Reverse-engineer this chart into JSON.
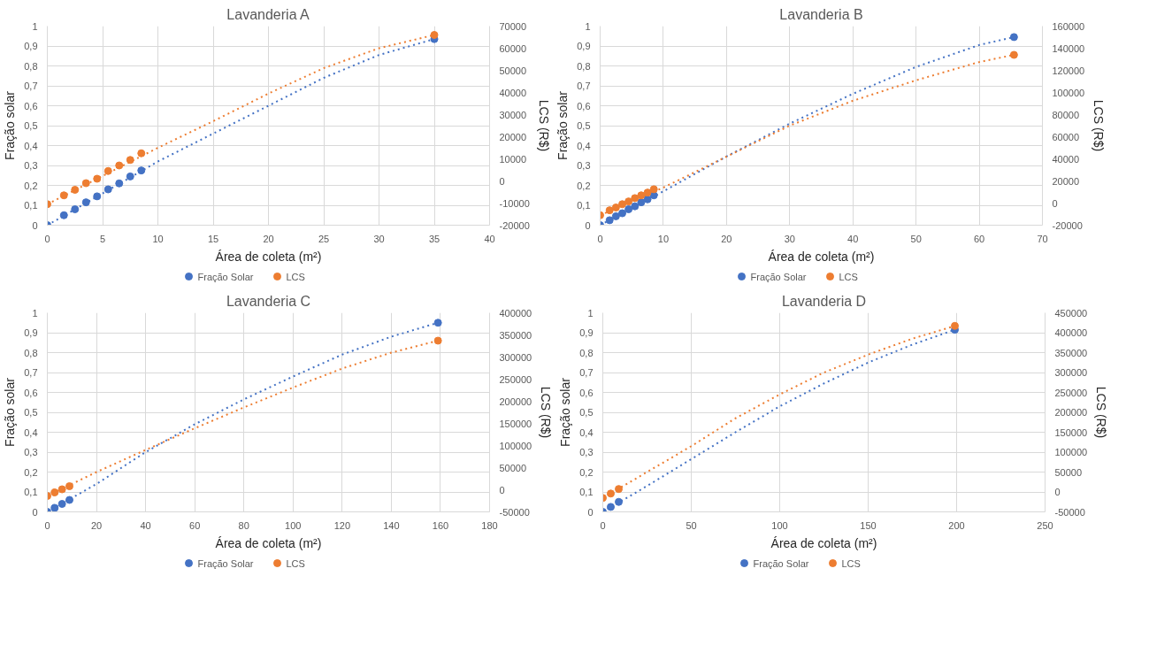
{
  "chart_data": [
    {
      "type": "scatter",
      "title": "Lavanderia A",
      "xlabel": "Área de coleta (m²)",
      "ylabel": "Fração solar",
      "y2label": "LCS (R$)",
      "xlim": [
        0,
        40
      ],
      "xticks": [
        0,
        5,
        10,
        15,
        20,
        25,
        30,
        35,
        40
      ],
      "ylim": [
        0,
        1
      ],
      "yticks": [
        0,
        {
          "value": 0.1,
          "label": "0,1"
        },
        {
          "value": 0.2,
          "label": "0,2"
        },
        {
          "value": 0.3,
          "label": "0,3"
        },
        {
          "value": 0.4,
          "label": "0,4"
        },
        {
          "value": 0.5,
          "label": "0,5"
        },
        {
          "value": 0.6,
          "label": "0,6"
        },
        {
          "value": 0.7,
          "label": "0,7"
        },
        {
          "value": 0.8,
          "label": "0,8"
        },
        {
          "value": 0.9,
          "label": "0,9"
        },
        1
      ],
      "y2lim": [
        -20000,
        70000
      ],
      "y2ticks": [
        -20000,
        -10000,
        0,
        10000,
        20000,
        30000,
        40000,
        50000,
        60000,
        70000
      ],
      "grid": true,
      "legend": "bottom",
      "marker": "circle",
      "series": [
        {
          "name": "Fração Solar",
          "color": "#4472c4",
          "x": [
            0,
            1.5,
            2.5,
            3.5,
            4.5,
            5.5,
            6.5,
            7.5,
            8.5,
            35
          ],
          "values": [
            0,
            0.05,
            0.08,
            0.115,
            0.145,
            0.18,
            0.21,
            0.245,
            0.275,
            0.935
          ]
        },
        {
          "name": "LCS",
          "color": "#ed7d31",
          "axis": "y2",
          "x": [
            0,
            1.5,
            2.5,
            3.5,
            4.5,
            5.5,
            6.5,
            7.5,
            8.5,
            35
          ],
          "values": [
            -10500,
            -6500,
            -4000,
            -1000,
            1000,
            4500,
            7000,
            9500,
            12500,
            66000
          ]
        },
        {
          "type": "line",
          "line_style": "dotted",
          "marker": "none",
          "color": "#4472c4",
          "x": [
            0,
            10,
            15,
            20,
            25,
            30,
            35
          ],
          "values": [
            0,
            0.32,
            0.46,
            0.6,
            0.74,
            0.855,
            0.935
          ]
        },
        {
          "type": "line",
          "line_style": "dotted",
          "marker": "none",
          "color": "#ed7d31",
          "axis": "y2",
          "x": [
            0,
            10,
            15,
            20,
            25,
            30,
            35
          ],
          "values": [
            -10500,
            15000,
            27000,
            39500,
            51000,
            60000,
            66000
          ]
        }
      ]
    },
    {
      "type": "scatter",
      "title": "Lavanderia B",
      "xlabel": "Área de coleta (m²)",
      "ylabel": "Fração solar",
      "y2label": "LCS (R$)",
      "xlim": [
        0,
        70
      ],
      "xticks": [
        0,
        10,
        20,
        30,
        40,
        50,
        60,
        70
      ],
      "ylim": [
        0,
        1
      ],
      "yticks": [
        0,
        {
          "value": 0.1,
          "label": "0,1"
        },
        {
          "value": 0.2,
          "label": "0,2"
        },
        {
          "value": 0.3,
          "label": "0,3"
        },
        {
          "value": 0.4,
          "label": "0,4"
        },
        {
          "value": 0.5,
          "label": "0,5"
        },
        {
          "value": 0.6,
          "label": "0,6"
        },
        {
          "value": 0.7,
          "label": "0,7"
        },
        {
          "value": 0.8,
          "label": "0,8"
        },
        {
          "value": 0.9,
          "label": "0,9"
        },
        1
      ],
      "y2lim": [
        -20000,
        160000
      ],
      "y2ticks": [
        -20000,
        0,
        20000,
        40000,
        60000,
        80000,
        100000,
        120000,
        140000,
        160000
      ],
      "grid": true,
      "legend": "bottom",
      "marker": "circle",
      "series": [
        {
          "name": "Fração Solar",
          "color": "#4472c4",
          "x": [
            0,
            1.5,
            2.5,
            3.5,
            4.5,
            5.5,
            6.5,
            7.5,
            8.5,
            65.5
          ],
          "values": [
            0,
            0.025,
            0.045,
            0.06,
            0.08,
            0.095,
            0.115,
            0.13,
            0.15,
            0.945
          ]
        },
        {
          "name": "LCS",
          "color": "#ed7d31",
          "axis": "y2",
          "x": [
            0,
            1.5,
            2.5,
            3.5,
            4.5,
            5.5,
            6.5,
            7.5,
            8.5,
            65.5
          ],
          "values": [
            -11000,
            -6500,
            -4000,
            -1000,
            1500,
            4500,
            7000,
            9500,
            12500,
            134000
          ]
        },
        {
          "type": "line",
          "line_style": "dotted",
          "marker": "none",
          "color": "#4472c4",
          "x": [
            0,
            10,
            20,
            30,
            40,
            50,
            60,
            65.5
          ],
          "values": [
            0,
            0.17,
            0.345,
            0.51,
            0.66,
            0.795,
            0.905,
            0.945
          ]
        },
        {
          "type": "line",
          "line_style": "dotted",
          "marker": "none",
          "color": "#ed7d31",
          "axis": "y2",
          "x": [
            0,
            10,
            20,
            30,
            40,
            50,
            60,
            65.5
          ],
          "values": [
            -11000,
            14000,
            42000,
            70000,
            92500,
            111000,
            127500,
            134000
          ]
        }
      ]
    },
    {
      "type": "scatter",
      "title": "Lavanderia C",
      "xlabel": "Área de coleta (m²)",
      "ylabel": "Fração solar",
      "y2label": "LCS (R$)",
      "xlim": [
        0,
        180
      ],
      "xticks": [
        0,
        20,
        40,
        60,
        80,
        100,
        120,
        140,
        160,
        180
      ],
      "ylim": [
        0,
        1
      ],
      "yticks": [
        0,
        {
          "value": 0.1,
          "label": "0,1"
        },
        {
          "value": 0.2,
          "label": "0,2"
        },
        {
          "value": 0.3,
          "label": "0,3"
        },
        {
          "value": 0.4,
          "label": "0,4"
        },
        {
          "value": 0.5,
          "label": "0,5"
        },
        {
          "value": 0.6,
          "label": "0,6"
        },
        {
          "value": 0.7,
          "label": "0,7"
        },
        {
          "value": 0.8,
          "label": "0,8"
        },
        {
          "value": 0.9,
          "label": "0,9"
        },
        1
      ],
      "y2lim": [
        -50000,
        400000
      ],
      "y2ticks": [
        -50000,
        0,
        50000,
        100000,
        150000,
        200000,
        250000,
        300000,
        350000,
        400000
      ],
      "grid": true,
      "legend": "bottom",
      "marker": "circle",
      "series": [
        {
          "name": "Fração Solar",
          "color": "#4472c4",
          "x": [
            0,
            3,
            6,
            9,
            159
          ],
          "values": [
            0,
            0.02,
            0.04,
            0.06,
            0.95
          ]
        },
        {
          "name": "LCS",
          "color": "#ed7d31",
          "axis": "y2",
          "x": [
            0,
            3,
            6,
            9,
            159
          ],
          "values": [
            -14000,
            -6000,
            1000,
            8000,
            337000
          ]
        },
        {
          "type": "line",
          "line_style": "dotted",
          "marker": "none",
          "color": "#4472c4",
          "x": [
            0,
            20,
            40,
            60,
            80,
            100,
            120,
            140,
            159
          ],
          "values": [
            0,
            0.14,
            0.3,
            0.44,
            0.565,
            0.68,
            0.79,
            0.88,
            0.95
          ]
        },
        {
          "type": "line",
          "line_style": "dotted",
          "marker": "none",
          "color": "#ed7d31",
          "axis": "y2",
          "x": [
            0,
            20,
            40,
            60,
            80,
            100,
            120,
            140,
            159
          ],
          "values": [
            -14000,
            40000,
            90000,
            139000,
            186000,
            231000,
            274000,
            310000,
            337000
          ]
        }
      ]
    },
    {
      "type": "scatter",
      "title": "Lavanderia D",
      "xlabel": "Área de coleta (m²)",
      "ylabel": "Fração solar",
      "y2label": "LCS (R$)",
      "xlim": [
        0,
        250
      ],
      "xticks": [
        0,
        50,
        100,
        150,
        200,
        250
      ],
      "ylim": [
        0,
        1
      ],
      "yticks": [
        0,
        {
          "value": 0.1,
          "label": "0,1"
        },
        {
          "value": 0.2,
          "label": "0,2"
        },
        {
          "value": 0.3,
          "label": "0,3"
        },
        {
          "value": 0.4,
          "label": "0,4"
        },
        {
          "value": 0.5,
          "label": "0,5"
        },
        {
          "value": 0.6,
          "label": "0,6"
        },
        {
          "value": 0.7,
          "label": "0,7"
        },
        {
          "value": 0.8,
          "label": "0,8"
        },
        {
          "value": 0.9,
          "label": "0,9"
        },
        1
      ],
      "y2lim": [
        -50000,
        450000
      ],
      "y2ticks": [
        -50000,
        0,
        50000,
        100000,
        150000,
        200000,
        250000,
        300000,
        350000,
        400000,
        450000
      ],
      "grid": true,
      "legend": "bottom",
      "marker": "circle",
      "series": [
        {
          "name": "Fração Solar",
          "color": "#4472c4",
          "x": [
            0,
            4.5,
            9,
            199
          ],
          "values": [
            0,
            0.025,
            0.05,
            0.915
          ]
        },
        {
          "name": "LCS",
          "color": "#ed7d31",
          "axis": "y2",
          "x": [
            0,
            4.5,
            9,
            199
          ],
          "values": [
            -15000,
            -4000,
            7500,
            417000
          ]
        },
        {
          "type": "line",
          "line_style": "dotted",
          "marker": "none",
          "color": "#4472c4",
          "x": [
            0,
            25,
            50,
            75,
            100,
            125,
            150,
            175,
            199
          ],
          "values": [
            0,
            0.13,
            0.265,
            0.4,
            0.53,
            0.645,
            0.75,
            0.84,
            0.915
          ]
        },
        {
          "type": "line",
          "line_style": "dotted",
          "marker": "none",
          "color": "#ed7d31",
          "axis": "y2",
          "x": [
            0,
            25,
            50,
            75,
            100,
            125,
            150,
            175,
            199
          ],
          "values": [
            -15000,
            50000,
            115000,
            185000,
            245000,
            300000,
            345000,
            385000,
            417000
          ]
        }
      ]
    }
  ]
}
